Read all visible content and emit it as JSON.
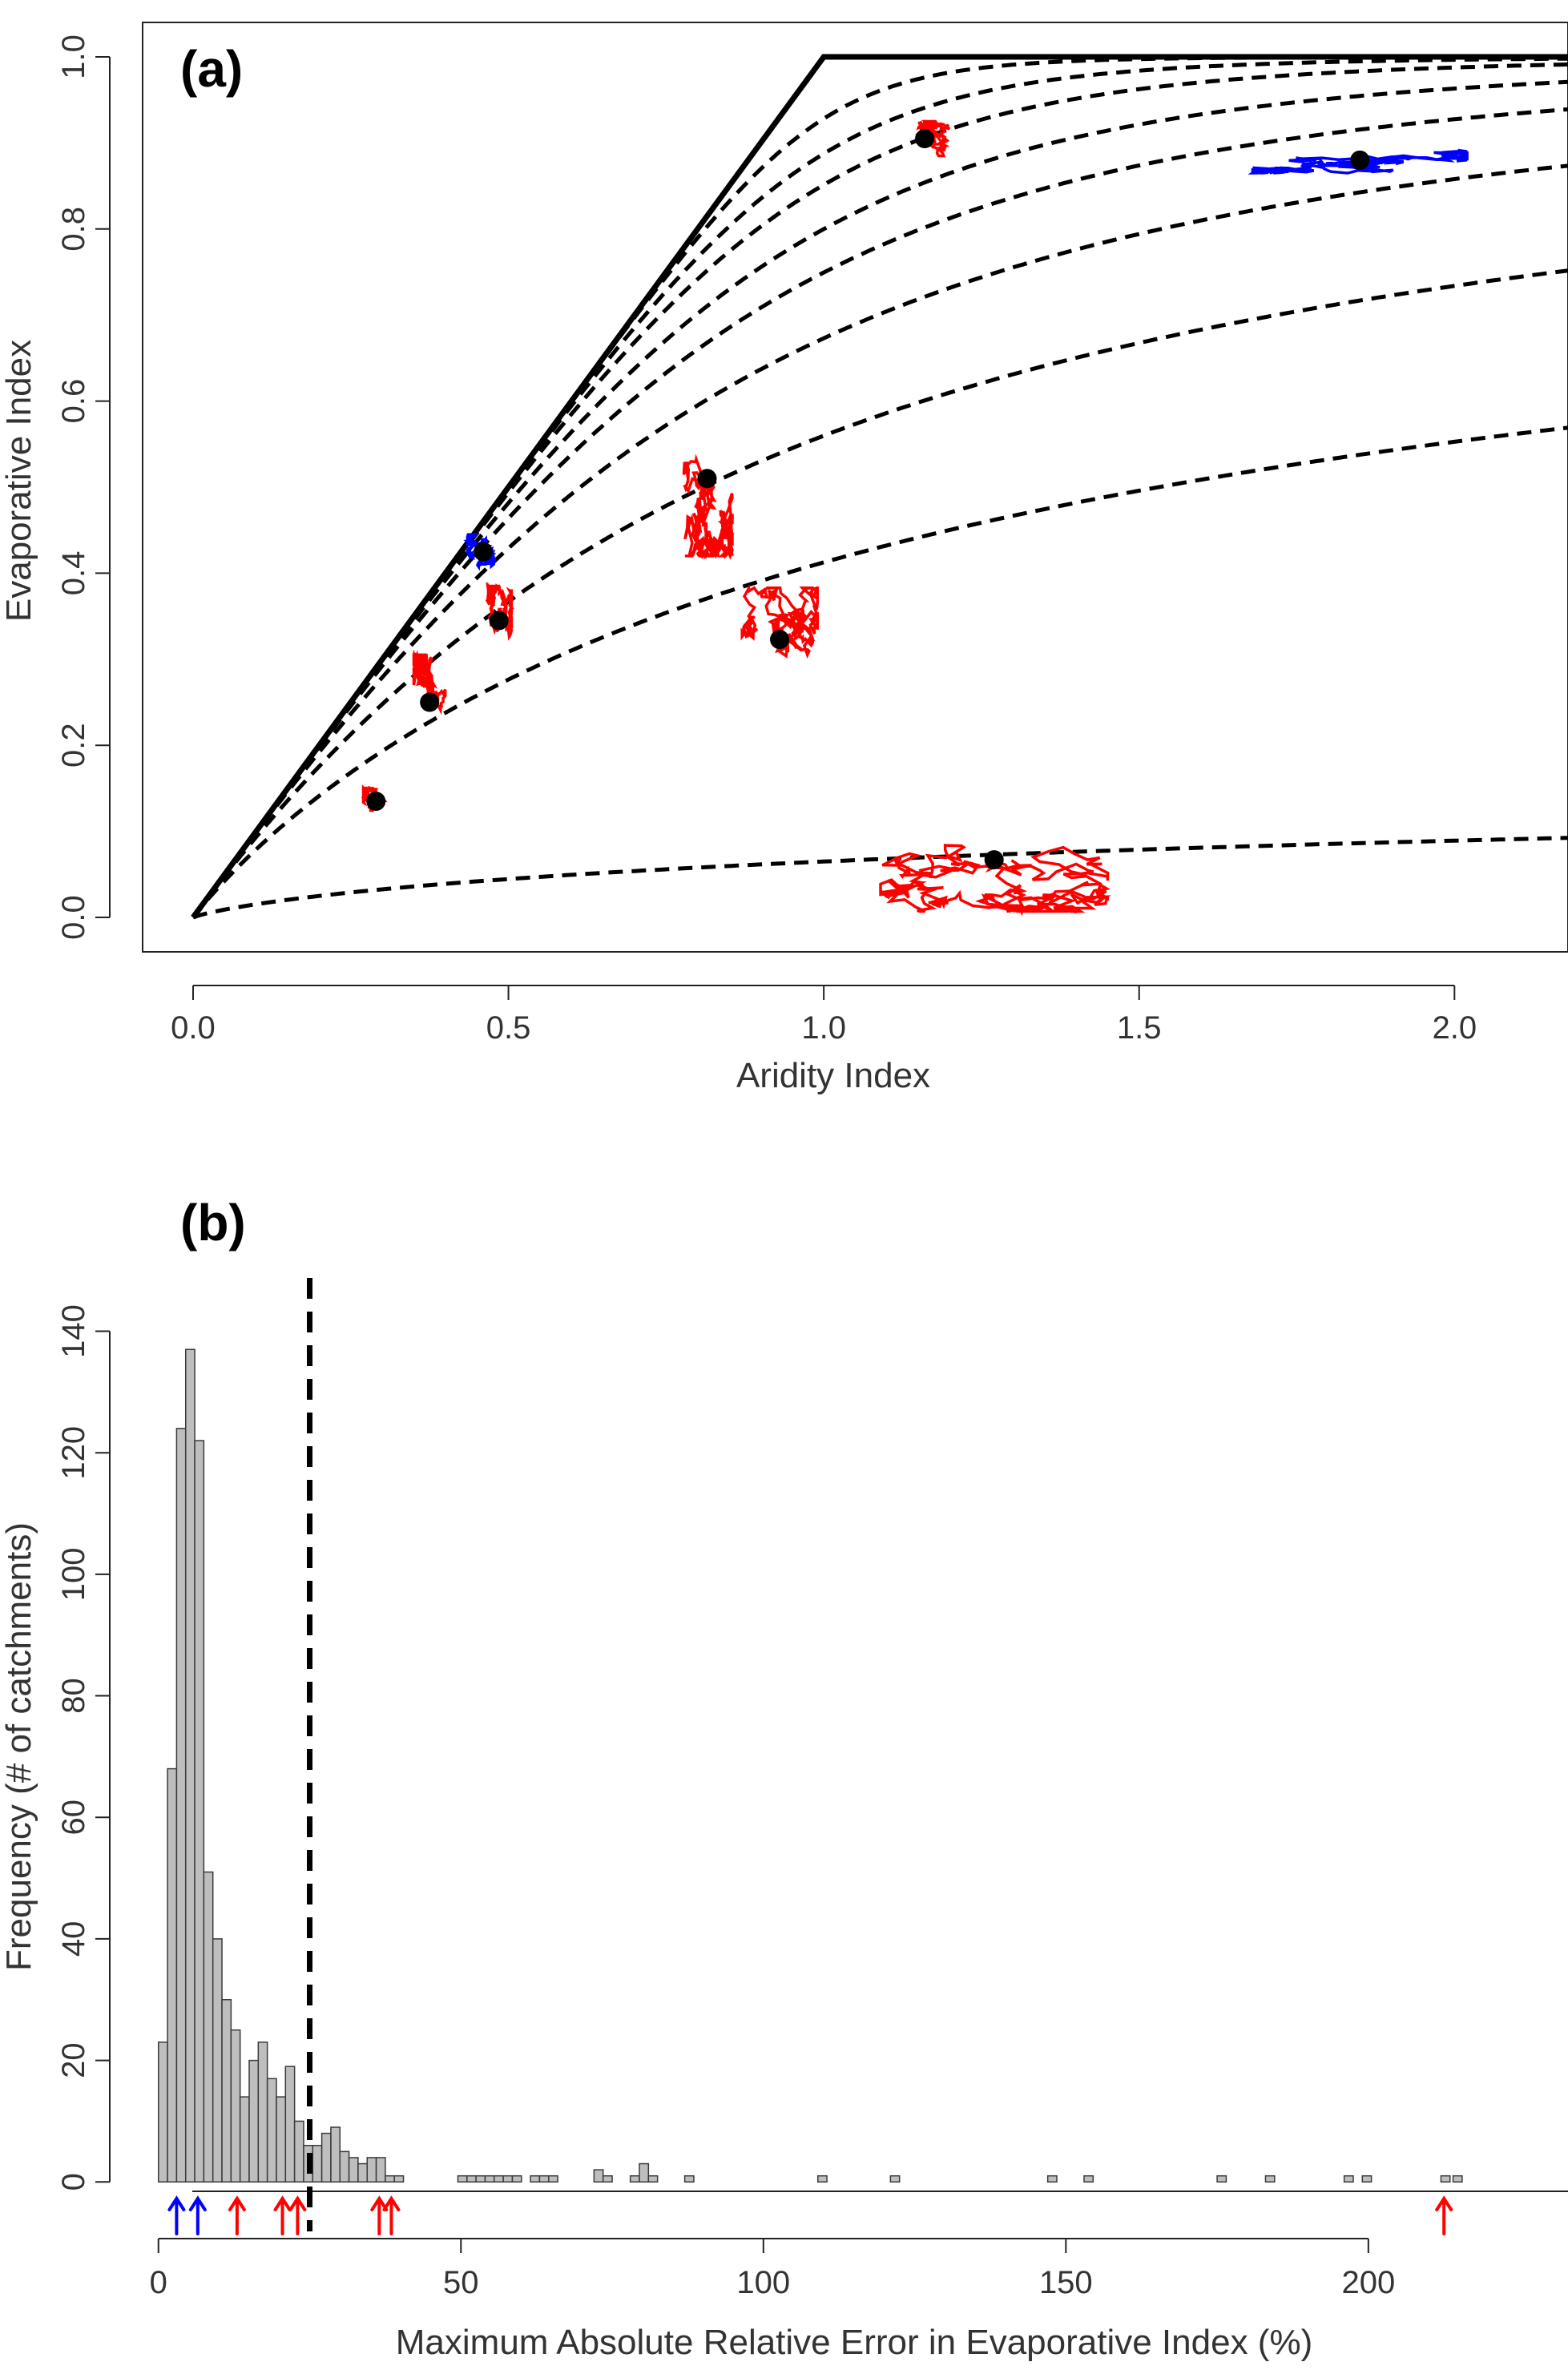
{
  "colors": {
    "trajectory_red": "#ff0000",
    "trajectory_blue": "#0000ff",
    "curve": "#000000",
    "bar_fill": "#bebebe",
    "bar_stroke": "#3a3a3a"
  },
  "chart_data": [
    {
      "type": "line",
      "panel_label": "(a)",
      "xlabel": "Aridity Index",
      "ylabel": "Evaporative Index",
      "xlim": [
        -0.08,
        2.18
      ],
      "ylim": [
        -0.04,
        1.04
      ],
      "x_ticks": [
        "0.0",
        "0.5",
        "1.0",
        "1.5",
        "2.0"
      ],
      "y_ticks": [
        "0.0",
        "0.2",
        "0.4",
        "0.6",
        "0.8",
        "1.0"
      ],
      "boundary_limit": {
        "x": [
          0,
          1,
          2.18
        ],
        "y": [
          0,
          1,
          1
        ]
      },
      "budyko_curve_parameters": [
        1.05,
        1.5,
        1.9,
        2.45,
        3.1,
        3.8,
        5.0,
        6.5,
        10.0
      ],
      "catchment_points": [
        {
          "x": 1.16,
          "y": 0.905,
          "color": "red"
        },
        {
          "x": 1.85,
          "y": 0.88,
          "color": "blue"
        },
        {
          "x": 0.815,
          "y": 0.51,
          "color": "red"
        },
        {
          "x": 0.46,
          "y": 0.425,
          "color": "blue"
        },
        {
          "x": 0.485,
          "y": 0.345,
          "color": "red"
        },
        {
          "x": 0.93,
          "y": 0.323,
          "color": "red"
        },
        {
          "x": 0.375,
          "y": 0.25,
          "color": "red"
        },
        {
          "x": 0.29,
          "y": 0.135,
          "color": "red"
        },
        {
          "x": 1.27,
          "y": 0.067,
          "color": "red"
        }
      ],
      "trajectory_spread": [
        {
          "dx": 0.04,
          "dy": 0.02
        },
        {
          "dx": 0.17,
          "dy": 0.015
        },
        {
          "dx": 0.04,
          "dy": 0.09
        },
        {
          "dx": 0.025,
          "dy": 0.02
        },
        {
          "dx": 0.02,
          "dy": 0.04
        },
        {
          "dx": 0.06,
          "dy": 0.06
        },
        {
          "dx": 0.025,
          "dy": 0.055
        },
        {
          "dx": 0.02,
          "dy": 0.015
        },
        {
          "dx": 0.18,
          "dy": 0.06
        }
      ],
      "grid": false
    },
    {
      "type": "bar",
      "panel_label": "(b)",
      "xlabel": "Maximum Absolute Relative Error in Evaporative Index (%)",
      "ylabel": "Frequency (# of catchments)",
      "xlim": [
        -5,
        233
      ],
      "ylim": [
        -5.5,
        146
      ],
      "x_ticks": [
        "0",
        "50",
        "100",
        "150",
        "200"
      ],
      "y_ticks": [
        "0",
        "20",
        "40",
        "60",
        "80",
        "100",
        "120",
        "140"
      ],
      "bin_width": 1.5,
      "bin_start": 0,
      "bin_counts": [
        23,
        68,
        124,
        137,
        122,
        51,
        40,
        30,
        25,
        14,
        20,
        23,
        17,
        14,
        19,
        10,
        6,
        6,
        8,
        9,
        5,
        4,
        3,
        4,
        4,
        1,
        1,
        0,
        0,
        0,
        0,
        0,
        0,
        1,
        1,
        1,
        1,
        1,
        1,
        1,
        0,
        1,
        1,
        1,
        0,
        0,
        0,
        0,
        2,
        1,
        0,
        0,
        1,
        3,
        1
      ],
      "isolated_bins": [
        {
          "x": 87,
          "count": 1
        },
        {
          "x": 109,
          "count": 1
        },
        {
          "x": 121,
          "count": 1
        },
        {
          "x": 147,
          "count": 1
        },
        {
          "x": 153,
          "count": 1
        },
        {
          "x": 175,
          "count": 1
        },
        {
          "x": 183,
          "count": 1
        },
        {
          "x": 196,
          "count": 1
        },
        {
          "x": 199,
          "count": 1
        },
        {
          "x": 212,
          "count": 1
        },
        {
          "x": 214,
          "count": 1
        }
      ],
      "threshold_x": 25,
      "marker_arrows": [
        {
          "x": 3,
          "color": "blue"
        },
        {
          "x": 6.5,
          "color": "blue"
        },
        {
          "x": 13,
          "color": "red"
        },
        {
          "x": 20.5,
          "color": "red"
        },
        {
          "x": 23,
          "color": "red"
        },
        {
          "x": 36.5,
          "color": "red"
        },
        {
          "x": 38.5,
          "color": "red"
        },
        {
          "x": 212.5,
          "color": "red"
        }
      ],
      "grid": false
    }
  ]
}
